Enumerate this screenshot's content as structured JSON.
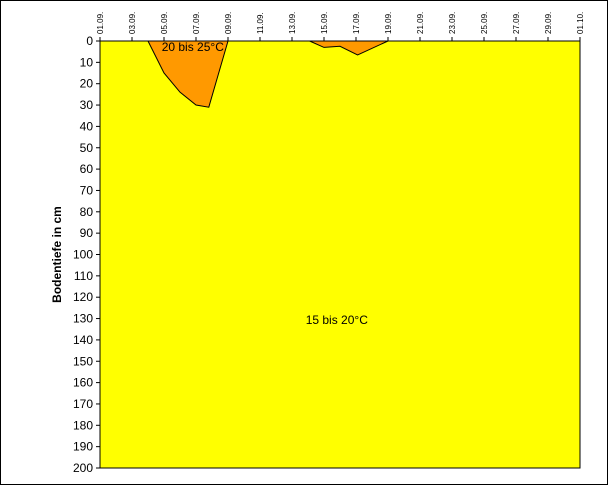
{
  "chart_data": {
    "type": "area",
    "title": "",
    "xlabel": "",
    "ylabel": "Bodentiefe in cm",
    "x_tick_labels": [
      "01.09.",
      "03.09.",
      "05.09.",
      "07.09.",
      "09.09.",
      "11.09.",
      "13.09.",
      "15.09.",
      "17.09.",
      "19.09.",
      "21.09.",
      "23.09.",
      "25.09.",
      "27.09.",
      "29.09.",
      "01.10."
    ],
    "x_range_days": [
      1,
      31
    ],
    "y_ticks": [
      0,
      10,
      20,
      30,
      40,
      50,
      60,
      70,
      80,
      90,
      100,
      110,
      120,
      130,
      140,
      150,
      160,
      170,
      180,
      190,
      200
    ],
    "ylim": [
      0,
      200
    ],
    "y_inverted": true,
    "grid": false,
    "background_region": {
      "label": "15 bis 20°C",
      "color": "#ffff00"
    },
    "series": [
      {
        "name": "20 bis 25°C",
        "color": "#ff9900",
        "regions": [
          {
            "x": [
              4.0,
              5.0,
              6.0,
              7.0,
              7.8,
              9.0
            ],
            "y": [
              0,
              15,
              24,
              30,
              31,
              0
            ]
          },
          {
            "x": [
              14.1,
              15.0,
              16.0,
              17.1,
              19.0
            ],
            "y": [
              0,
              3,
              2.5,
              6.5,
              0
            ]
          }
        ]
      }
    ],
    "annotations": [
      {
        "text": "20 bis 25°C",
        "series": 0
      },
      {
        "text": "15 bis 20°C",
        "series": "background"
      }
    ]
  }
}
